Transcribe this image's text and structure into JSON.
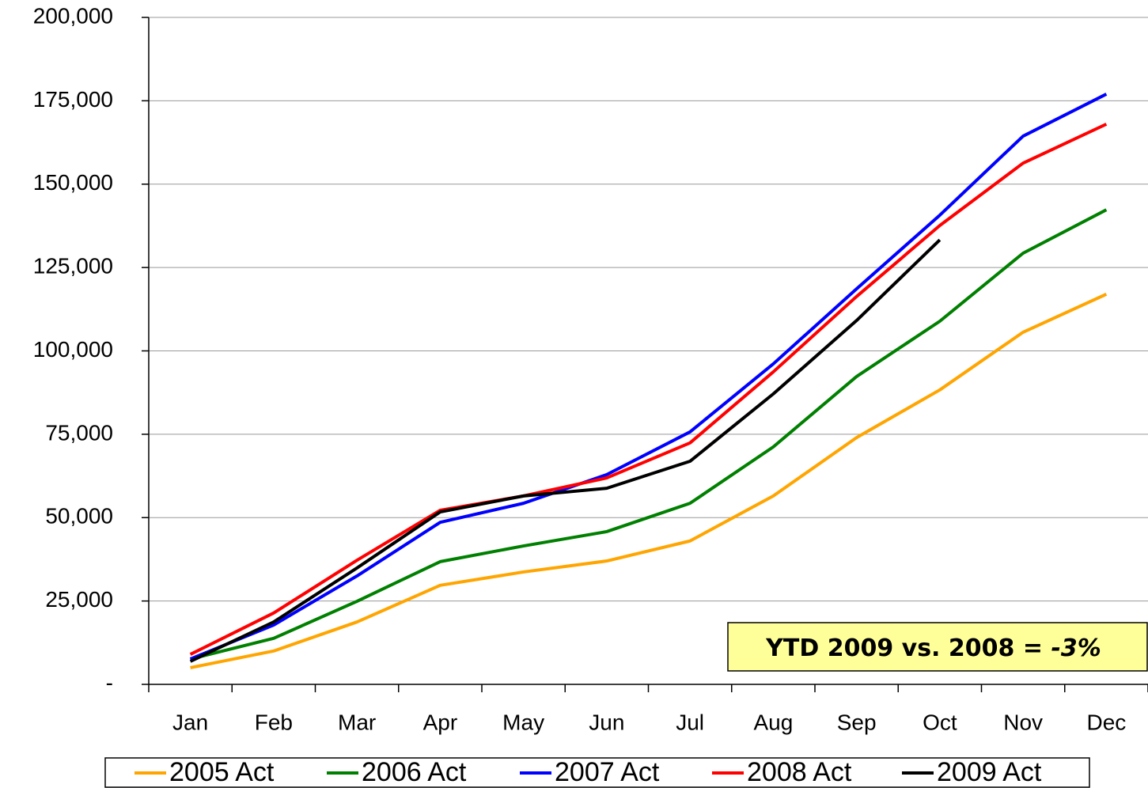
{
  "chart_data": {
    "type": "line",
    "categories": [
      "Jan",
      "Feb",
      "Mar",
      "Apr",
      "May",
      "Jun",
      "Jul",
      "Aug",
      "Sep",
      "Oct",
      "Nov",
      "Dec"
    ],
    "series": [
      {
        "name": "2005 Act",
        "color": "#ffa500",
        "values": [
          5000,
          10000,
          18700,
          29700,
          33700,
          37000,
          43000,
          56500,
          74000,
          88300,
          105600,
          117000
        ]
      },
      {
        "name": "2006 Act",
        "color": "#008000",
        "values": [
          7600,
          13800,
          24900,
          36800,
          41500,
          45800,
          54300,
          71200,
          92300,
          108900,
          129300,
          142300
        ]
      },
      {
        "name": "2007 Act",
        "color": "#0000ff",
        "values": [
          7600,
          17800,
          32500,
          48600,
          54300,
          62900,
          75700,
          96100,
          118600,
          140700,
          164400,
          177000
        ]
      },
      {
        "name": "2008 Act",
        "color": "#ff0000",
        "values": [
          9000,
          21400,
          37200,
          52200,
          56500,
          61900,
          72400,
          93700,
          116300,
          137600,
          156300,
          168000
        ]
      },
      {
        "name": "2009 Act",
        "color": "#000000",
        "values": [
          6900,
          18700,
          34900,
          51700,
          56500,
          58800,
          66900,
          87100,
          109100,
          133300,
          null,
          null
        ]
      }
    ],
    "ylim": [
      0,
      200000
    ],
    "yticks": [
      {
        "value": 0,
        "label": "-"
      },
      {
        "value": 25000,
        "label": "25,000"
      },
      {
        "value": 50000,
        "label": "50,000"
      },
      {
        "value": 75000,
        "label": "75,000"
      },
      {
        "value": 100000,
        "label": "100,000"
      },
      {
        "value": 125000,
        "label": "125,000"
      },
      {
        "value": 150000,
        "label": "150,000"
      },
      {
        "value": 175000,
        "label": "175,000"
      },
      {
        "value": 200000,
        "label": "200,000"
      }
    ],
    "grid": true,
    "annotation": {
      "text": "YTD 2009 vs. 2008 =",
      "highlight": "-3%"
    }
  }
}
